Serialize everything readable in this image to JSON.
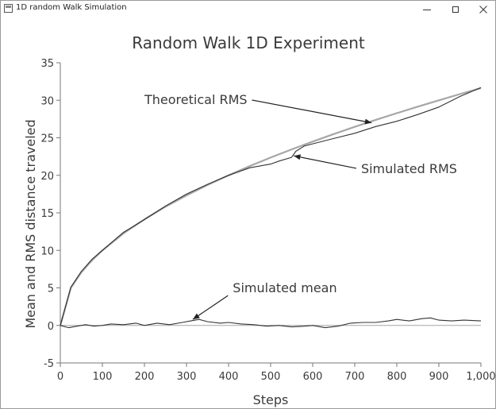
{
  "window": {
    "title": "1D random Walk Simulation",
    "controls": {
      "minimize": "minimize-icon",
      "maximize": "maximize-icon",
      "close": "close-icon"
    }
  },
  "chart_data": {
    "type": "line",
    "title": "Random Walk 1D Experiment",
    "xlabel": "Steps",
    "ylabel": "Mean and RMS distance traveled",
    "xlim": [
      0,
      1000
    ],
    "ylim": [
      -5,
      35
    ],
    "x_ticks": [
      0,
      100,
      200,
      300,
      400,
      500,
      600,
      700,
      800,
      900,
      1000
    ],
    "x_tick_labels": [
      "0",
      "100",
      "200",
      "300",
      "400",
      "500",
      "600",
      "700",
      "800",
      "900",
      "1,000"
    ],
    "y_ticks": [
      -5,
      0,
      5,
      10,
      15,
      20,
      25,
      30,
      35
    ],
    "y_tick_labels": [
      "-5",
      "0",
      "5",
      "10",
      "15",
      "20",
      "25",
      "30",
      "35"
    ],
    "grid": false,
    "legend": "none",
    "colors": {
      "theoretical": "#a6a6a6",
      "simulated": "#333333",
      "zero_line": "#a6a6a6",
      "axis": "#777777",
      "text": "#3a3a3a"
    },
    "series": [
      {
        "name": "Theoretical RMS",
        "x": [
          0,
          25,
          50,
          75,
          100,
          150,
          200,
          250,
          300,
          350,
          400,
          450,
          500,
          550,
          600,
          650,
          700,
          750,
          800,
          850,
          900,
          950,
          1000
        ],
        "values": [
          0,
          5.0,
          7.07,
          8.66,
          10.0,
          12.25,
          14.14,
          15.81,
          17.32,
          18.71,
          20.0,
          21.21,
          22.36,
          23.45,
          24.49,
          25.5,
          26.46,
          27.39,
          28.28,
          29.15,
          30.0,
          30.82,
          31.62
        ]
      },
      {
        "name": "Simulated RMS",
        "x": [
          0,
          25,
          50,
          75,
          100,
          150,
          200,
          250,
          300,
          350,
          400,
          450,
          500,
          520,
          550,
          560,
          580,
          600,
          650,
          700,
          750,
          800,
          850,
          900,
          950,
          1000
        ],
        "values": [
          0,
          5.1,
          7.2,
          8.8,
          10.0,
          12.4,
          14.1,
          15.9,
          17.5,
          18.8,
          20.0,
          21.0,
          21.5,
          21.9,
          22.4,
          23.2,
          23.9,
          24.2,
          24.9,
          25.6,
          26.5,
          27.2,
          28.1,
          29.1,
          30.5,
          31.7
        ]
      },
      {
        "name": "Simulated mean",
        "x": [
          0,
          20,
          40,
          60,
          80,
          100,
          120,
          150,
          180,
          200,
          230,
          260,
          290,
          310,
          330,
          350,
          380,
          400,
          430,
          460,
          490,
          520,
          550,
          580,
          600,
          630,
          660,
          690,
          720,
          750,
          780,
          800,
          830,
          860,
          880,
          900,
          930,
          960,
          1000
        ],
        "values": [
          0,
          -0.3,
          -0.1,
          0.1,
          -0.1,
          0.0,
          0.2,
          0.1,
          0.3,
          0.0,
          0.3,
          0.1,
          0.4,
          0.6,
          0.8,
          0.5,
          0.3,
          0.4,
          0.2,
          0.1,
          -0.1,
          0.0,
          -0.2,
          -0.1,
          0.0,
          -0.3,
          -0.1,
          0.3,
          0.4,
          0.4,
          0.6,
          0.8,
          0.6,
          0.9,
          1.0,
          0.7,
          0.6,
          0.7,
          0.6
        ]
      }
    ],
    "annotations": [
      {
        "text": "Theoretical RMS",
        "x": 200,
        "y": 29.5,
        "arrow_to": [
          740,
          27.0
        ]
      },
      {
        "text": "Simulated RMS",
        "x": 715,
        "y": 20.3,
        "arrow_to": [
          555,
          22.6
        ]
      },
      {
        "text": "Simulated mean",
        "x": 410,
        "y": 4.4,
        "arrow_to": [
          315,
          0.8
        ]
      }
    ]
  }
}
